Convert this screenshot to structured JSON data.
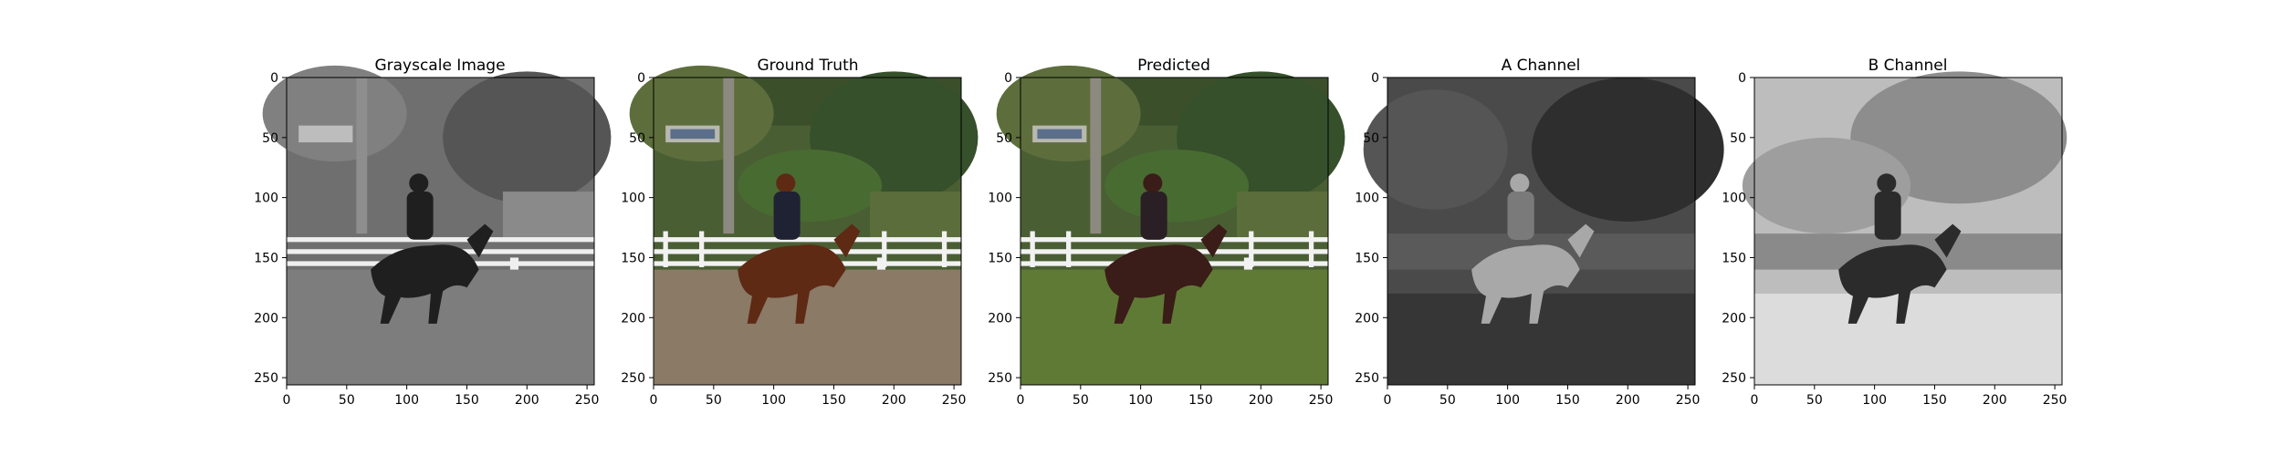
{
  "figure": {
    "panels": [
      {
        "title": "Grayscale Image",
        "variant": "grayscale"
      },
      {
        "title": "Ground Truth",
        "variant": "ground-truth"
      },
      {
        "title": "Predicted",
        "variant": "predicted"
      },
      {
        "title": "A Channel",
        "variant": "a-channel"
      },
      {
        "title": "B Channel",
        "variant": "b-channel"
      }
    ],
    "x_ticks": [
      "0",
      "50",
      "100",
      "150",
      "200",
      "250"
    ],
    "y_ticks": [
      "0",
      "50",
      "100",
      "150",
      "200",
      "250"
    ],
    "tick_values": [
      0,
      50,
      100,
      150,
      200,
      250
    ],
    "image_size": 256
  },
  "colors": {
    "sky_foliage_gray": "#6f6f6f",
    "ground_truth_foliage": "#3f5a2e",
    "predicted_grass": "#5f7a34",
    "arena_dirt": "#8a7a66",
    "horse_brown": "#6b3018",
    "rail_white": "#f2f2f2"
  },
  "icons": [
    "horse-and-rider-scene"
  ]
}
